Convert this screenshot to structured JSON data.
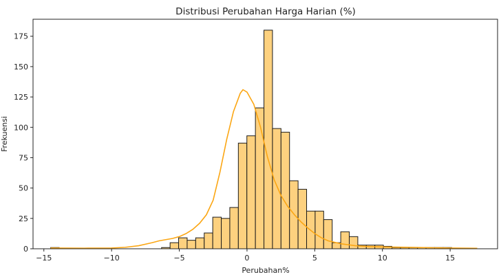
{
  "chart_data": {
    "type": "bar",
    "subtype": "histogram",
    "title": "Distribusi Perubahan Harga Harian (%)",
    "xlabel": "Perubahan%",
    "ylabel": "Frekuensi",
    "xlim": [
      -15.8,
      18.5
    ],
    "ylim": [
      0,
      189
    ],
    "xticks": [
      -15,
      -10,
      -5,
      0,
      5,
      10,
      15
    ],
    "xtick_labels": [
      "−15",
      "−10",
      "−5",
      "0",
      "5",
      "10",
      "15"
    ],
    "yticks": [
      0,
      25,
      50,
      75,
      100,
      125,
      150,
      175
    ],
    "ytick_labels": [
      "0",
      "25",
      "50",
      "75",
      "100",
      "125",
      "150",
      "175"
    ],
    "grid": false,
    "bin_start": -14.5,
    "bin_width": 0.63,
    "counts": [
      1,
      0,
      0,
      0,
      0,
      0,
      0,
      0,
      0,
      0,
      0,
      0,
      0,
      1,
      5,
      9,
      7,
      9,
      13,
      26,
      25,
      34,
      87,
      93,
      116,
      180,
      99,
      96,
      56,
      49,
      31,
      31,
      24,
      5,
      14,
      10,
      3,
      3,
      3,
      2,
      1,
      1,
      1,
      1,
      1,
      1,
      1,
      0,
      0,
      0
    ],
    "bar_color": "#fdd17f",
    "edge_color": "#1a1a1a",
    "kde": {
      "color": "#fba613",
      "x": [
        -14.5,
        -12,
        -10,
        -9,
        -8,
        -7,
        -6.5,
        -6,
        -5.5,
        -5,
        -4.5,
        -4,
        -3.5,
        -3,
        -2.5,
        -2,
        -1.5,
        -1,
        -0.5,
        -0.3,
        0,
        0.5,
        1,
        1.5,
        2,
        2.5,
        3,
        3.5,
        4,
        4.5,
        5,
        5.5,
        6,
        7,
        8,
        9,
        10,
        12,
        15,
        17
      ],
      "y": [
        0.6,
        0.5,
        0.6,
        1.2,
        2.5,
        5,
        6.5,
        7.5,
        8.5,
        10,
        12.5,
        16,
        21,
        28,
        40,
        63,
        90,
        113,
        128,
        131,
        129,
        119,
        100,
        76,
        57,
        44,
        35,
        28,
        22,
        17,
        12.5,
        9,
        6.5,
        4,
        2.5,
        1.8,
        1.5,
        1.2,
        0.6,
        0.4
      ]
    }
  }
}
